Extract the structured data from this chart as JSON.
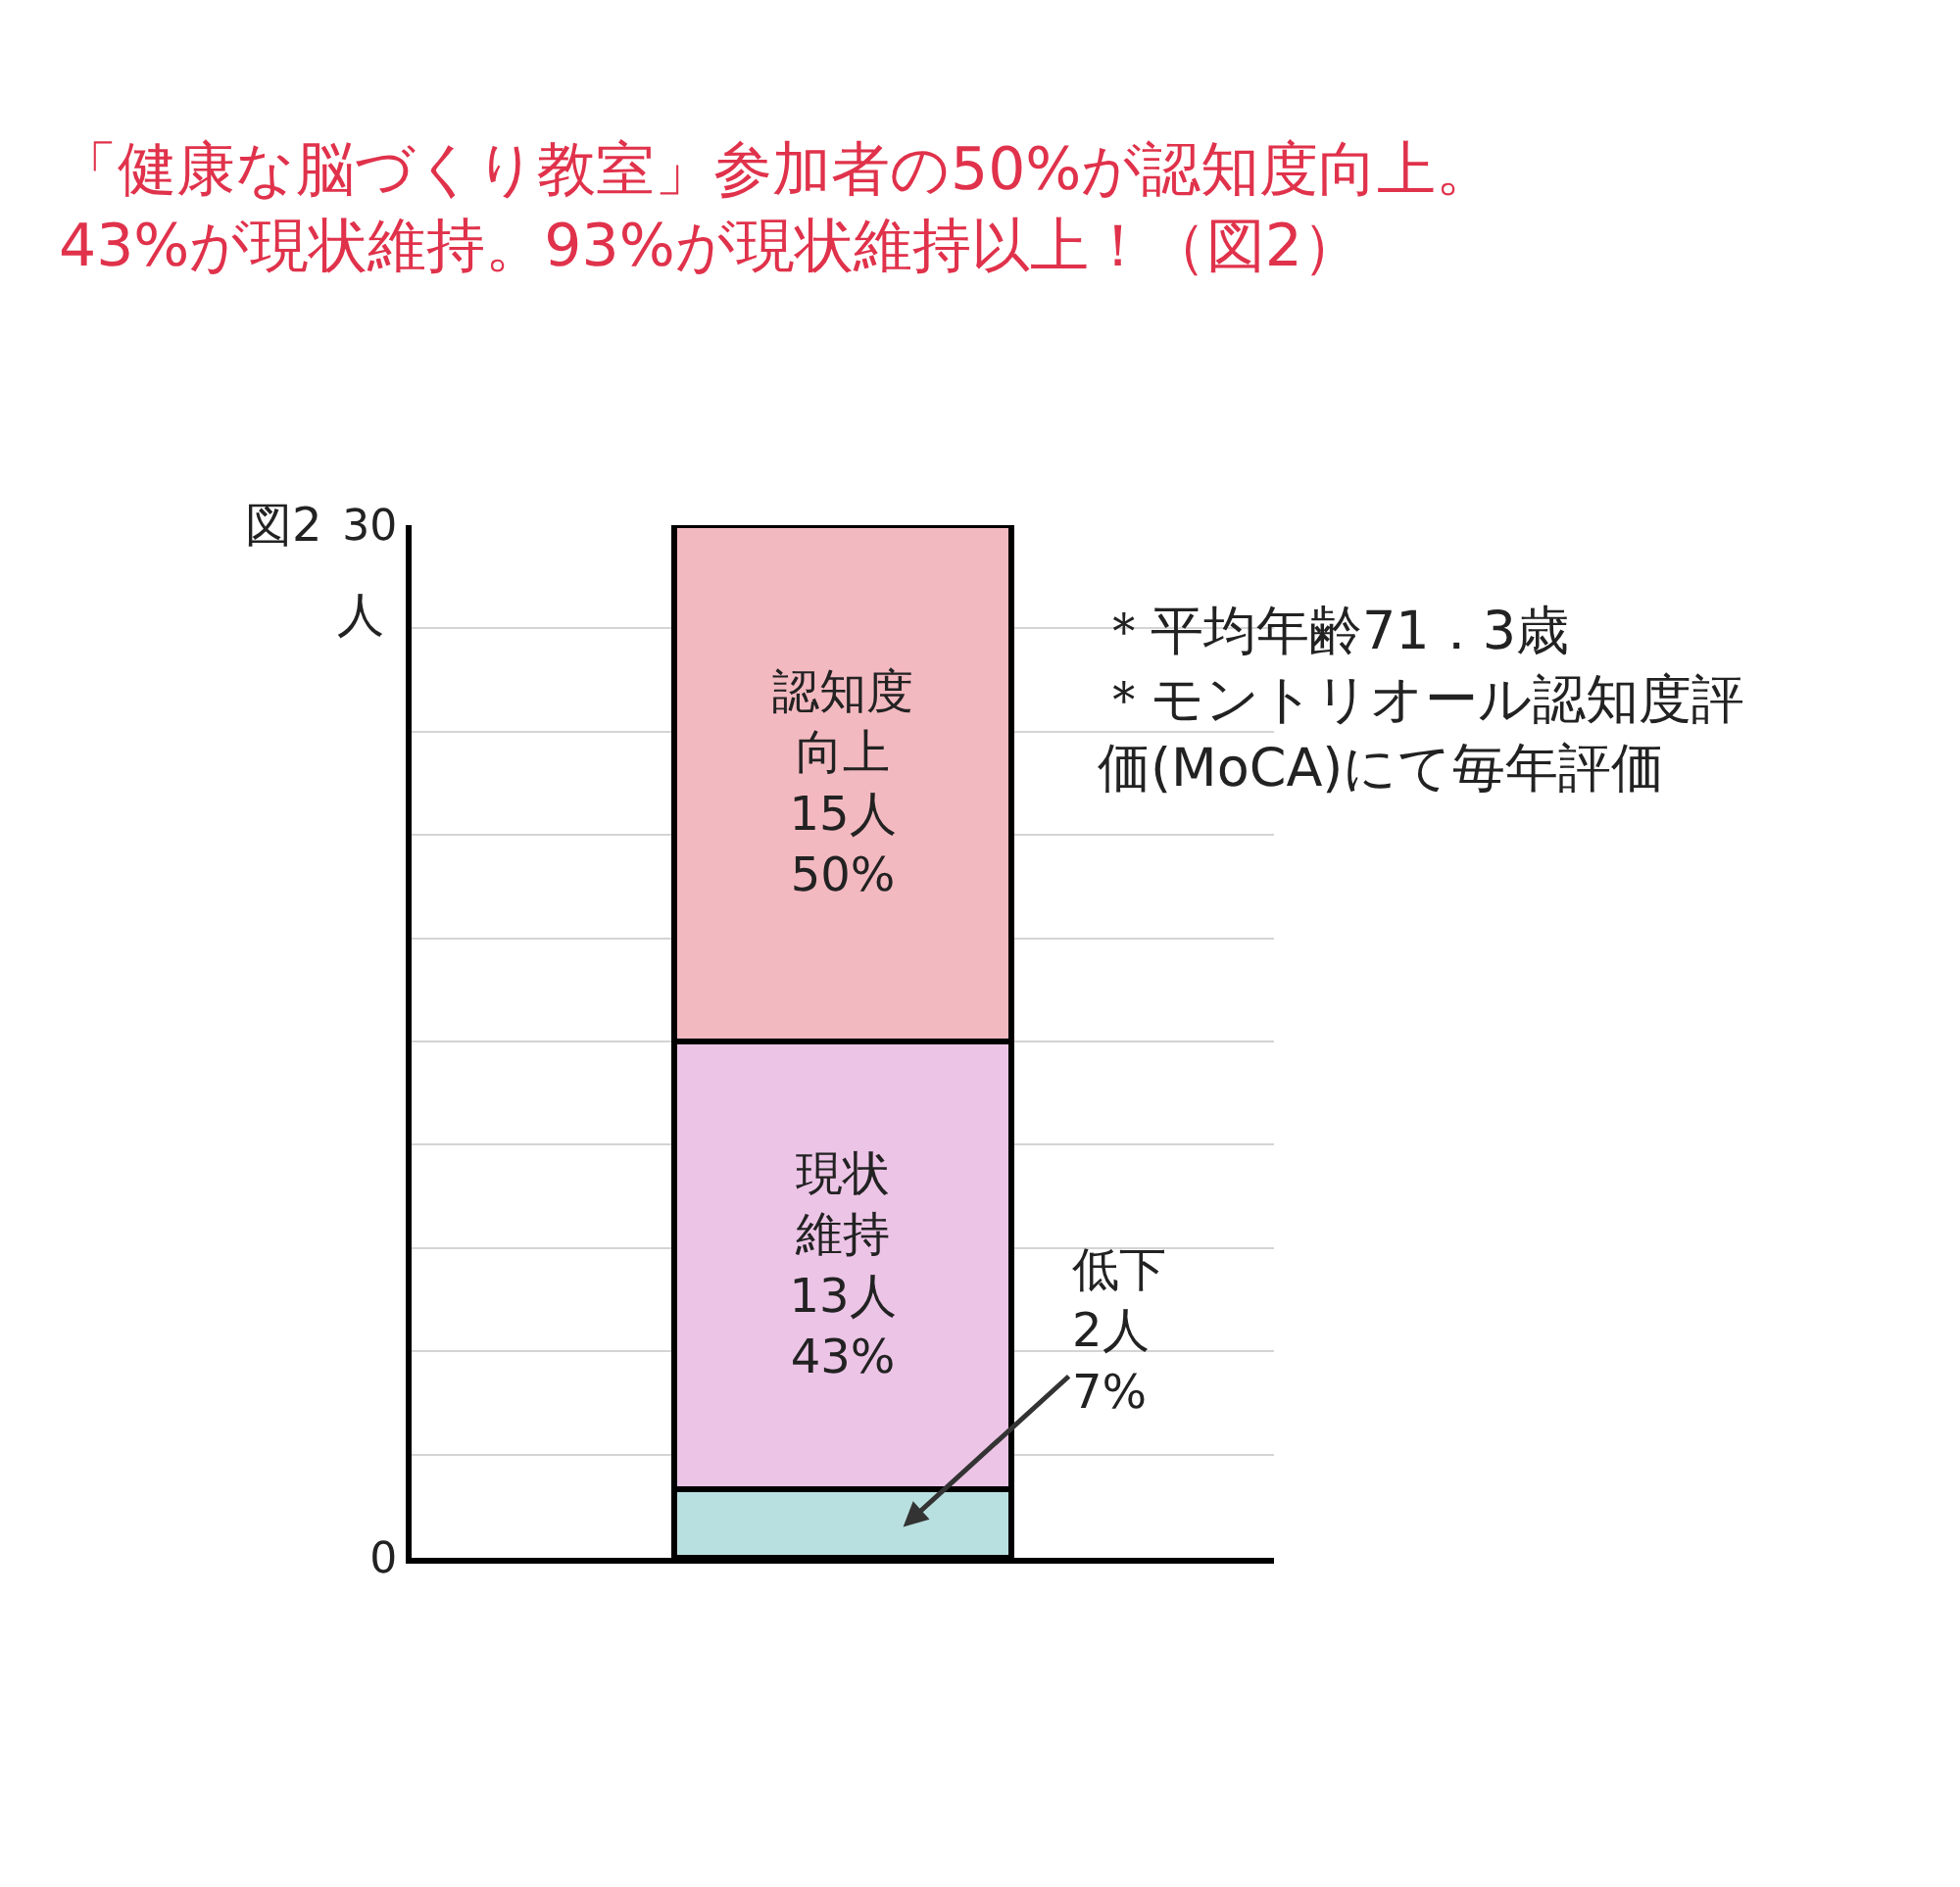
{
  "chart_data": {
    "type": "bar",
    "title": "「健康な脳づくり教室」参加者の50%が認知度向上。43%が現状維持。93%が現状維持以上！（図2）",
    "ylabel": "人",
    "categories": [
      null
    ],
    "stacked": true,
    "series": [
      {
        "color": "#b9e0e0",
        "values": [
          2
        ],
        "value_labels": [
          null
        ]
      },
      {
        "color": "#ecc4e6",
        "values": [
          13
        ],
        "value_labels": [
          "現状維持13人43%"
        ]
      },
      {
        "color": "#f3b9c0",
        "values": [
          15
        ],
        "value_labels": [
          "認知度向上15人50%"
        ]
      }
    ],
    "ylim": [
      0,
      30
    ],
    "yticks": [
      0,
      {
        "value": 3,
        "label": null
      },
      {
        "value": 6,
        "label": null
      },
      {
        "value": 9,
        "label": null
      },
      {
        "value": 12,
        "label": null
      },
      {
        "value": 15,
        "label": null
      },
      {
        "value": 18,
        "label": null
      },
      {
        "value": 21,
        "label": null
      },
      {
        "value": 24,
        "label": null
      },
      {
        "value": 27,
        "label": null
      },
      30
    ],
    "grid": "y",
    "annotations": [
      "図2",
      "＊平均年齢71．3歳＊モントリオール認知度評価(MoCA)にて毎年評価",
      "低下2人7%"
    ]
  }
}
